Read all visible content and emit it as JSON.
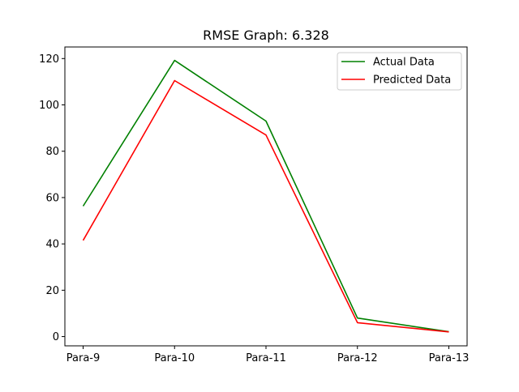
{
  "chart_data": {
    "type": "line",
    "title": "RMSE Graph: 6.328",
    "xlabel": "",
    "ylabel": "",
    "categories": [
      "Para-9",
      "Para-10",
      "Para-11",
      "Para-12",
      "Para-13"
    ],
    "series": [
      {
        "name": "Actual Data",
        "color": "#008000",
        "values": [
          56.3,
          119.2,
          93.0,
          8.0,
          2.1
        ]
      },
      {
        "name": "Predicted Data",
        "color": "#ff0000",
        "values": [
          41.5,
          110.5,
          87.0,
          6.0,
          2.0
        ]
      }
    ],
    "ylim": [
      -4,
      125
    ],
    "yticks": [
      0,
      20,
      40,
      60,
      80,
      100,
      120
    ],
    "grid": false,
    "legend": "upper right"
  }
}
